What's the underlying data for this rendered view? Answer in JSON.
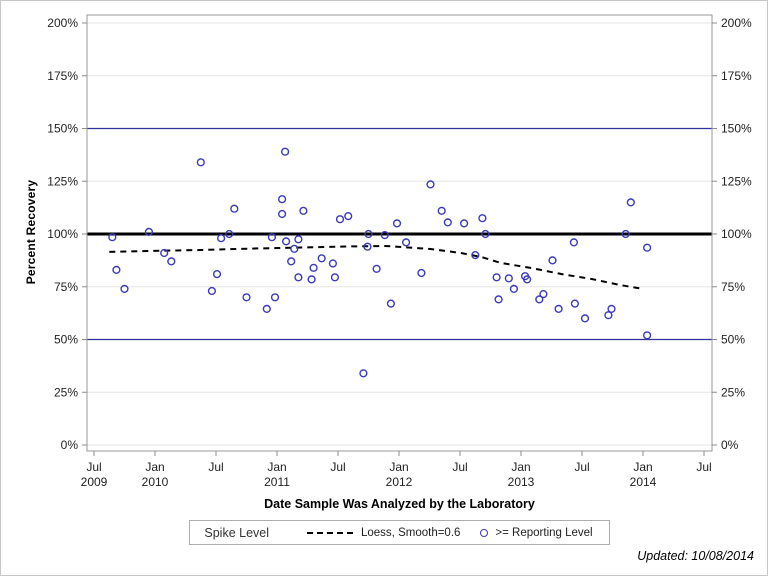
{
  "figure": {
    "updated_note": "Updated: 10/08/2014"
  },
  "axes": {
    "y_title": "Percent Recovery",
    "x_title": "Date Sample Was Analyzed by the Laboratory"
  },
  "legend": {
    "title": "Spike Level",
    "items": [
      {
        "marker": "dashed-line-sample",
        "label": "Loess, Smooth=0.6"
      },
      {
        "marker": "open-circle-sample",
        "label": ">= Reporting Level"
      }
    ]
  },
  "colors": {
    "marker_blue": "#3a3ab8",
    "refline_blue": "#30309c",
    "refline_black": "#000000",
    "gridline_gray": "#e5e5e5",
    "frame_gray": "#999999",
    "tick_gray": "#8c8c8c",
    "tick_text": "#1f1f1f"
  },
  "chart_data": {
    "type": "scatter",
    "title": "",
    "xlabel": "Date Sample Was Analyzed by the Laboratory",
    "ylabel": "Percent Recovery",
    "x_unit": "months since Jul 2009",
    "xlim": [
      0,
      60
    ],
    "ylim": [
      0,
      200
    ],
    "grid": "horizontal-light",
    "legend_position": "bottom-center",
    "y_ticks": [
      {
        "v": 0,
        "label": "0%"
      },
      {
        "v": 25,
        "label": "25%"
      },
      {
        "v": 50,
        "label": "50%"
      },
      {
        "v": 75,
        "label": "75%"
      },
      {
        "v": 100,
        "label": "100%"
      },
      {
        "v": 125,
        "label": "125%"
      },
      {
        "v": 150,
        "label": "150%"
      },
      {
        "v": 175,
        "label": "175%"
      },
      {
        "v": 200,
        "label": "200%"
      }
    ],
    "x_ticks": [
      {
        "m": 0,
        "month": "Jul",
        "year": "2009"
      },
      {
        "m": 6,
        "month": "Jan",
        "year": "2010"
      },
      {
        "m": 12,
        "month": "Jul",
        "year": ""
      },
      {
        "m": 18,
        "month": "Jan",
        "year": "2011"
      },
      {
        "m": 24,
        "month": "Jul",
        "year": ""
      },
      {
        "m": 30,
        "month": "Jan",
        "year": "2012"
      },
      {
        "m": 36,
        "month": "Jul",
        "year": ""
      },
      {
        "m": 42,
        "month": "Jan",
        "year": "2013"
      },
      {
        "m": 48,
        "month": "Jul",
        "year": ""
      },
      {
        "m": 54,
        "month": "Jan",
        "year": "2014"
      },
      {
        "m": 60,
        "month": "Jul",
        "year": ""
      }
    ],
    "gridlines": [
      0,
      25,
      75,
      125,
      175,
      200
    ],
    "reference_lines": [
      {
        "name": "lower-limit-50pct",
        "value": 50,
        "color": "#30309c",
        "width": 1.2
      },
      {
        "name": "spike-level-100pct",
        "value": 100,
        "color": "#000000",
        "width": 3
      },
      {
        "name": "upper-limit-150pct",
        "value": 150,
        "color": "#30309c",
        "width": 1.2
      }
    ],
    "series": [
      {
        "name": "Loess, Smooth=0.6",
        "type": "line",
        "style": "dashed",
        "color": "#000000",
        "points": [
          [
            1.5,
            91.5
          ],
          [
            5.6,
            92.0
          ],
          [
            10.5,
            92.4
          ],
          [
            15.4,
            93.1
          ],
          [
            20.4,
            93.6
          ],
          [
            25.3,
            94.1
          ],
          [
            28.7,
            94.3
          ],
          [
            33.1,
            92.9
          ],
          [
            36.1,
            91.0
          ],
          [
            38.1,
            89.1
          ],
          [
            40.0,
            86.3
          ],
          [
            43.0,
            83.9
          ],
          [
            46.0,
            81.0
          ],
          [
            48.9,
            78.7
          ],
          [
            51.8,
            75.8
          ],
          [
            54.1,
            73.9
          ]
        ]
      },
      {
        "name": ">= Reporting Level",
        "type": "scatter",
        "marker": "open-circle",
        "color": "#3a3ab8",
        "points": [
          [
            1.8,
            98.5
          ],
          [
            2.2,
            83
          ],
          [
            3.0,
            74
          ],
          [
            5.4,
            101
          ],
          [
            6.9,
            91
          ],
          [
            7.6,
            87
          ],
          [
            10.5,
            134
          ],
          [
            11.6,
            73
          ],
          [
            12.1,
            81
          ],
          [
            12.5,
            98
          ],
          [
            13.3,
            100
          ],
          [
            13.8,
            112
          ],
          [
            15.0,
            70
          ],
          [
            17.0,
            64.5
          ],
          [
            17.5,
            98.5
          ],
          [
            17.8,
            70
          ],
          [
            18.5,
            116.5
          ],
          [
            18.5,
            109.5
          ],
          [
            18.8,
            139
          ],
          [
            18.9,
            96.5
          ],
          [
            19.4,
            87
          ],
          [
            19.7,
            93
          ],
          [
            20.1,
            97.5
          ],
          [
            20.1,
            79.5
          ],
          [
            20.6,
            111
          ],
          [
            21.4,
            78.5
          ],
          [
            21.6,
            84
          ],
          [
            22.4,
            88.5
          ],
          [
            23.5,
            86
          ],
          [
            23.7,
            79.5
          ],
          [
            24.2,
            107
          ],
          [
            25.0,
            108.5
          ],
          [
            26.5,
            34
          ],
          [
            26.9,
            94
          ],
          [
            27.0,
            100
          ],
          [
            27.8,
            83.5
          ],
          [
            28.6,
            99.5
          ],
          [
            29.2,
            67
          ],
          [
            29.8,
            105
          ],
          [
            30.7,
            96
          ],
          [
            32.2,
            81.5
          ],
          [
            33.1,
            123.5
          ],
          [
            34.2,
            111
          ],
          [
            34.8,
            105.5
          ],
          [
            36.4,
            105
          ],
          [
            37.5,
            90
          ],
          [
            38.2,
            107.5
          ],
          [
            38.5,
            100
          ],
          [
            39.6,
            79.5
          ],
          [
            39.8,
            69
          ],
          [
            40.8,
            79
          ],
          [
            41.3,
            74
          ],
          [
            42.4,
            80
          ],
          [
            42.6,
            78.5
          ],
          [
            43.8,
            69
          ],
          [
            44.2,
            71.5
          ],
          [
            45.1,
            87.5
          ],
          [
            45.7,
            64.5
          ],
          [
            47.2,
            96
          ],
          [
            47.3,
            67
          ],
          [
            48.3,
            60
          ],
          [
            50.6,
            61.5
          ],
          [
            50.9,
            64.5
          ],
          [
            52.3,
            100
          ],
          [
            52.8,
            115
          ],
          [
            54.4,
            93.5
          ],
          [
            54.4,
            52
          ]
        ]
      }
    ]
  }
}
